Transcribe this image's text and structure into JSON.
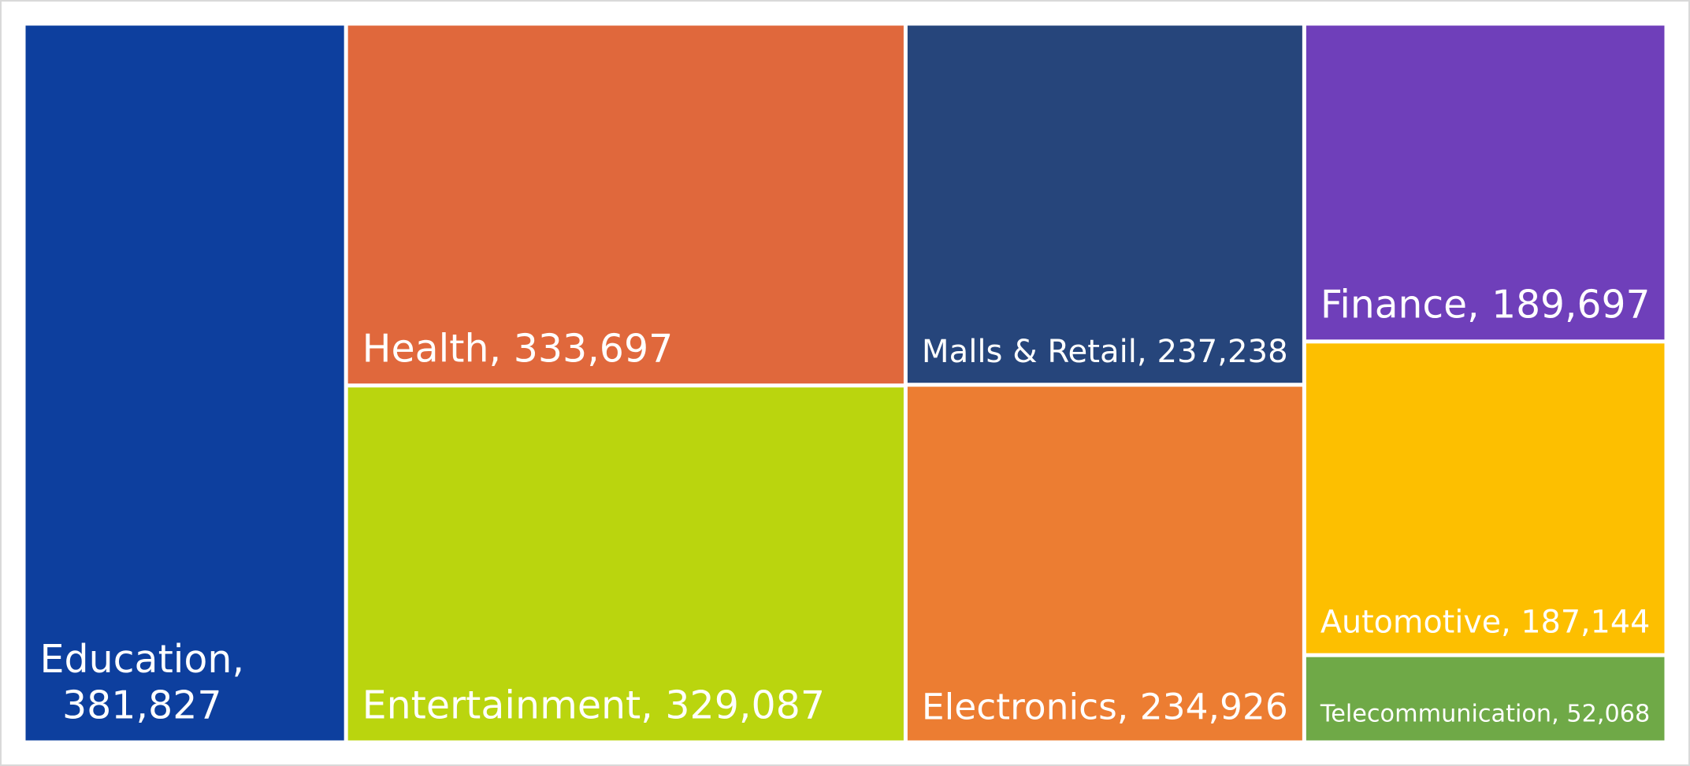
{
  "chart_data": {
    "type": "treemap",
    "labels": [
      "Education, 381,827",
      "Health, 333,697",
      "Entertainment, 329,087",
      "Malls & Retail, 237,238",
      "Electronics, 234,926",
      "Finance, 189,697",
      "Automotive, 187,144",
      "Telecommunication, 52,068"
    ],
    "values": [
      381827,
      333697,
      329087,
      237238,
      234926,
      189697,
      187144,
      52068
    ],
    "colors": [
      "#0d3f9e",
      "#e0683c",
      "#bad50e",
      "#26457b",
      "#ec7d32",
      "#6f3fba",
      "#fdbf00",
      "#6fa947"
    ]
  }
}
